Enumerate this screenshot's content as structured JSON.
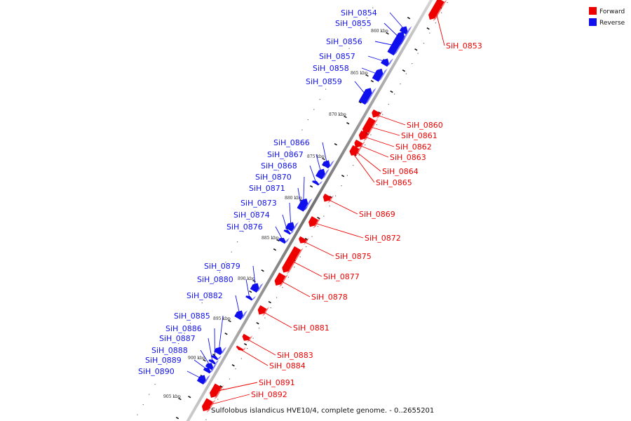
{
  "caption": "Sulfolobus islandicus HVE10/4, complete genome. - 0..2655201",
  "legend": [
    {
      "label": "Forward",
      "color": "#ee0000"
    },
    {
      "label": "Reverse",
      "color": "#1010ee"
    }
  ],
  "colors": {
    "forward": "#ee0000",
    "reverse": "#1010ee",
    "backbone": "#888888"
  },
  "ticks": [
    "860 kbp",
    "865 kbp",
    "870 kbp",
    "875 kbp",
    "880 kbp",
    "885 kbp",
    "890 kbp",
    "895 kbp",
    "900 kbp",
    "905 kbp"
  ],
  "genes": [
    {
      "name": "SiH_0853",
      "strand": "forward"
    },
    {
      "name": "SiH_0854",
      "strand": "reverse"
    },
    {
      "name": "SiH_0855",
      "strand": "reverse"
    },
    {
      "name": "SiH_0856",
      "strand": "reverse"
    },
    {
      "name": "SiH_0857",
      "strand": "reverse"
    },
    {
      "name": "SiH_0858",
      "strand": "reverse"
    },
    {
      "name": "SiH_0859",
      "strand": "reverse"
    },
    {
      "name": "SiH_0860",
      "strand": "forward"
    },
    {
      "name": "SiH_0861",
      "strand": "forward"
    },
    {
      "name": "SiH_0862",
      "strand": "forward"
    },
    {
      "name": "SiH_0863",
      "strand": "forward"
    },
    {
      "name": "SiH_0864",
      "strand": "forward"
    },
    {
      "name": "SiH_0865",
      "strand": "forward"
    },
    {
      "name": "SiH_0866",
      "strand": "reverse"
    },
    {
      "name": "SiH_0867",
      "strand": "reverse"
    },
    {
      "name": "SiH_0868",
      "strand": "reverse"
    },
    {
      "name": "SiH_0869",
      "strand": "forward"
    },
    {
      "name": "SiH_0870",
      "strand": "reverse"
    },
    {
      "name": "SiH_0871",
      "strand": "reverse"
    },
    {
      "name": "SiH_0872",
      "strand": "forward"
    },
    {
      "name": "SiH_0873",
      "strand": "reverse"
    },
    {
      "name": "SiH_0874",
      "strand": "reverse"
    },
    {
      "name": "SiH_0875",
      "strand": "forward"
    },
    {
      "name": "SiH_0876",
      "strand": "reverse"
    },
    {
      "name": "SiH_0877",
      "strand": "forward"
    },
    {
      "name": "SiH_0878",
      "strand": "forward"
    },
    {
      "name": "SiH_0879",
      "strand": "reverse"
    },
    {
      "name": "SiH_0880",
      "strand": "reverse"
    },
    {
      "name": "SiH_0881",
      "strand": "forward"
    },
    {
      "name": "SiH_0882",
      "strand": "reverse"
    },
    {
      "name": "SiH_0883",
      "strand": "forward"
    },
    {
      "name": "SiH_0884",
      "strand": "forward"
    },
    {
      "name": "SiH_0885",
      "strand": "reverse"
    },
    {
      "name": "SiH_0886",
      "strand": "reverse"
    },
    {
      "name": "SiH_0887",
      "strand": "reverse"
    },
    {
      "name": "SiH_0888",
      "strand": "reverse"
    },
    {
      "name": "SiH_0889",
      "strand": "reverse"
    },
    {
      "name": "SiH_0890",
      "strand": "reverse"
    },
    {
      "name": "SiH_0891",
      "strand": "forward"
    },
    {
      "name": "SiH_0892",
      "strand": "forward"
    }
  ]
}
